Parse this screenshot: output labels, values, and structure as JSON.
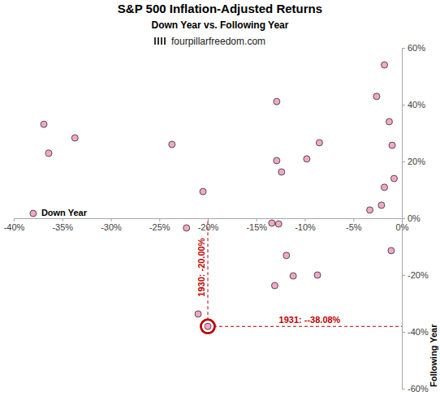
{
  "chart_data": {
    "type": "scatter",
    "title": "S&P 500 Inflation-Adjusted Returns",
    "subtitle": "Down Year vs. Following Year",
    "source": "fourpillarfreedom.com",
    "x_label": "Down Year",
    "y_label": "Following Year",
    "x": [
      -38,
      -36.9,
      -36.4,
      -33.7,
      -23.7,
      -22.2,
      -20.5,
      -21,
      -20,
      -12.9,
      -13.4,
      -12.7,
      -12.9,
      -12.4,
      -13.1,
      -11.9,
      -11.2,
      -9.8,
      -8.5,
      -8.7,
      -3.3,
      -2.6,
      -1.8,
      -2.1,
      -1.8,
      -1.3,
      -1,
      -0.8,
      -1.1
    ],
    "values": [
      1.7,
      33.1,
      22.9,
      28.3,
      26,
      -3.4,
      9.4,
      -33.7,
      -38.08,
      41.1,
      -1.7,
      -2,
      20.3,
      16.3,
      -23.7,
      -13.1,
      -20.3,
      20.9,
      26.6,
      -20,
      2.9,
      42.9,
      54,
      4.6,
      10.9,
      34,
      25.7,
      14,
      -11.4
    ],
    "color": "#f4a7c9",
    "marker": "circle",
    "xlim": [
      -40,
      0
    ],
    "ylim": [
      -60,
      60
    ],
    "xticks": [
      {
        "value": -40,
        "label": "-40%"
      },
      {
        "value": -35,
        "label": "-35%"
      },
      {
        "value": -30,
        "label": "-30%"
      },
      {
        "value": -25,
        "label": "-25%"
      },
      {
        "value": -20,
        "label": "-20%"
      },
      {
        "value": -15,
        "label": "-15%"
      },
      {
        "value": -10,
        "label": "-10%"
      },
      {
        "value": -5,
        "label": "-5%"
      },
      {
        "value": 0,
        "label": "0%"
      }
    ],
    "yticks": [
      {
        "value": -60,
        "label": "-60%"
      },
      {
        "value": -40,
        "label": "-40%"
      },
      {
        "value": -20,
        "label": "-20%"
      },
      {
        "value": 0,
        "label": "0%"
      },
      {
        "value": 20,
        "label": "20%"
      },
      {
        "value": 40,
        "label": "40%"
      },
      {
        "value": 60,
        "label": "60%"
      }
    ],
    "annotations": [
      {
        "text": "1930: -20.00%",
        "x": -20,
        "y": -38.08
      },
      {
        "text": "1931: --38.08%",
        "x": -20,
        "y": -38.08
      }
    ]
  }
}
